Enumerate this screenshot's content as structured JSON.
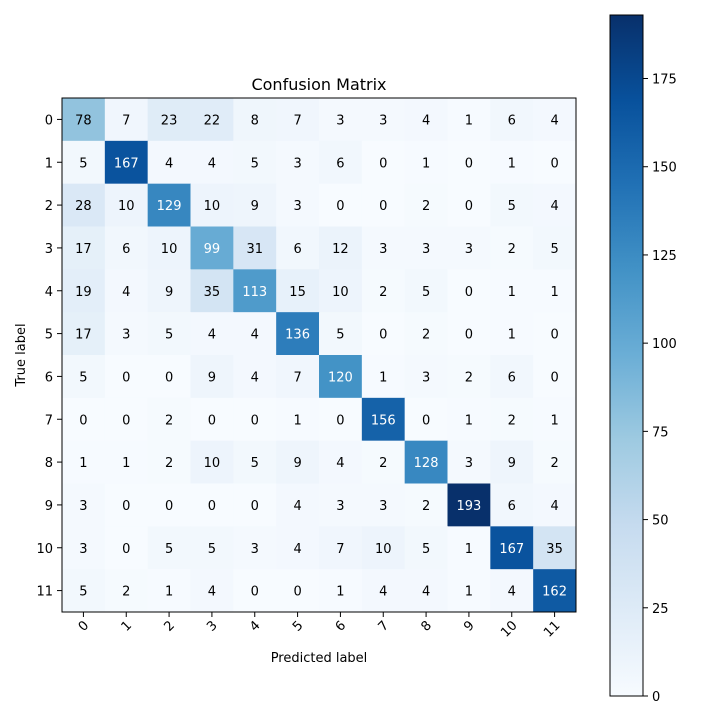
{
  "chart_data": {
    "type": "heatmap",
    "title": "Confusion Matrix",
    "xlabel": "Predicted label",
    "ylabel": "True label",
    "x_ticks": [
      "0",
      "1",
      "2",
      "3",
      "4",
      "5",
      "6",
      "7",
      "8",
      "9",
      "10",
      "11"
    ],
    "y_ticks": [
      "0",
      "1",
      "2",
      "3",
      "4",
      "5",
      "6",
      "7",
      "8",
      "9",
      "10",
      "11"
    ],
    "matrix": [
      [
        78,
        7,
        23,
        22,
        8,
        7,
        3,
        3,
        4,
        1,
        6,
        4
      ],
      [
        5,
        167,
        4,
        4,
        5,
        3,
        6,
        0,
        1,
        0,
        1,
        0
      ],
      [
        28,
        10,
        129,
        10,
        9,
        3,
        0,
        0,
        2,
        0,
        5,
        4
      ],
      [
        17,
        6,
        10,
        99,
        31,
        6,
        12,
        3,
        3,
        3,
        2,
        5
      ],
      [
        19,
        4,
        9,
        35,
        113,
        15,
        10,
        2,
        5,
        0,
        1,
        1
      ],
      [
        17,
        3,
        5,
        4,
        4,
        136,
        5,
        0,
        2,
        0,
        1,
        0
      ],
      [
        5,
        0,
        0,
        9,
        4,
        7,
        120,
        1,
        3,
        2,
        6,
        0
      ],
      [
        0,
        0,
        2,
        0,
        0,
        1,
        0,
        156,
        0,
        1,
        2,
        1
      ],
      [
        1,
        1,
        2,
        10,
        5,
        9,
        4,
        2,
        128,
        3,
        9,
        2
      ],
      [
        3,
        0,
        0,
        0,
        0,
        4,
        3,
        3,
        2,
        193,
        6,
        4
      ],
      [
        3,
        0,
        5,
        5,
        3,
        4,
        7,
        10,
        5,
        1,
        167,
        35
      ],
      [
        5,
        2,
        1,
        4,
        0,
        0,
        1,
        4,
        4,
        1,
        4,
        162
      ]
    ],
    "colorbar": {
      "min": 0,
      "max": 193,
      "ticks": [
        "0",
        "25",
        "50",
        "75",
        "100",
        "125",
        "150",
        "175"
      ],
      "colormap": "Blues"
    },
    "grid": false
  }
}
